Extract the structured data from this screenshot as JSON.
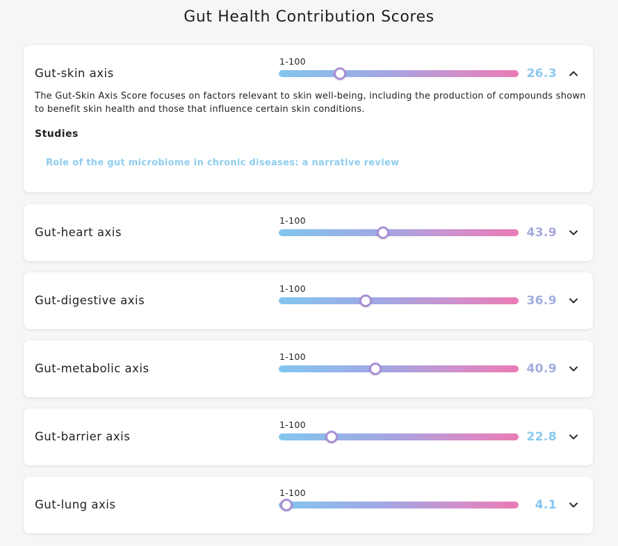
{
  "page": {
    "title": "Gut Health Contribution Scores"
  },
  "colors": {
    "track_start": "#82c6ee",
    "track_end": "#ea7bb5",
    "thumb_border": "#a98ed6",
    "link": "#8fcdee"
  },
  "axes": [
    {
      "label": "Gut-skin axis",
      "range_label": "1-100",
      "score": "26.3",
      "score_value": 26.3,
      "score_color": "#8ec8ee",
      "expanded": true,
      "chevron_icon": "chevron-up-icon",
      "description": "The Gut-Skin Axis Score focuses on factors relevant to skin well-being, including the production of compounds shown to benefit skin health and those that influence certain skin conditions.",
      "studies_heading": "Studies",
      "studies": [
        {
          "title": "Role of the gut microbiome in chronic diseases: a narrative review"
        }
      ]
    },
    {
      "label": "Gut-heart axis",
      "range_label": "1-100",
      "score": "43.9",
      "score_value": 43.9,
      "score_color": "#a5a9de",
      "expanded": false,
      "chevron_icon": "chevron-down-icon"
    },
    {
      "label": "Gut-digestive axis",
      "range_label": "1-100",
      "score": "36.9",
      "score_value": 36.9,
      "score_color": "#a0aee1",
      "expanded": false,
      "chevron_icon": "chevron-down-icon"
    },
    {
      "label": "Gut-metabolic axis",
      "range_label": "1-100",
      "score": "40.9",
      "score_value": 40.9,
      "score_color": "#a3abdf",
      "expanded": false,
      "chevron_icon": "chevron-down-icon"
    },
    {
      "label": "Gut-barrier axis",
      "range_label": "1-100",
      "score": "22.8",
      "score_value": 22.8,
      "score_color": "#87c9ef",
      "expanded": false,
      "chevron_icon": "chevron-down-icon"
    },
    {
      "label": "Gut-lung axis",
      "range_label": "1-100",
      "score": "4.1",
      "score_value": 4.1,
      "score_color": "#80c6ef",
      "expanded": false,
      "chevron_icon": "chevron-down-icon"
    }
  ]
}
